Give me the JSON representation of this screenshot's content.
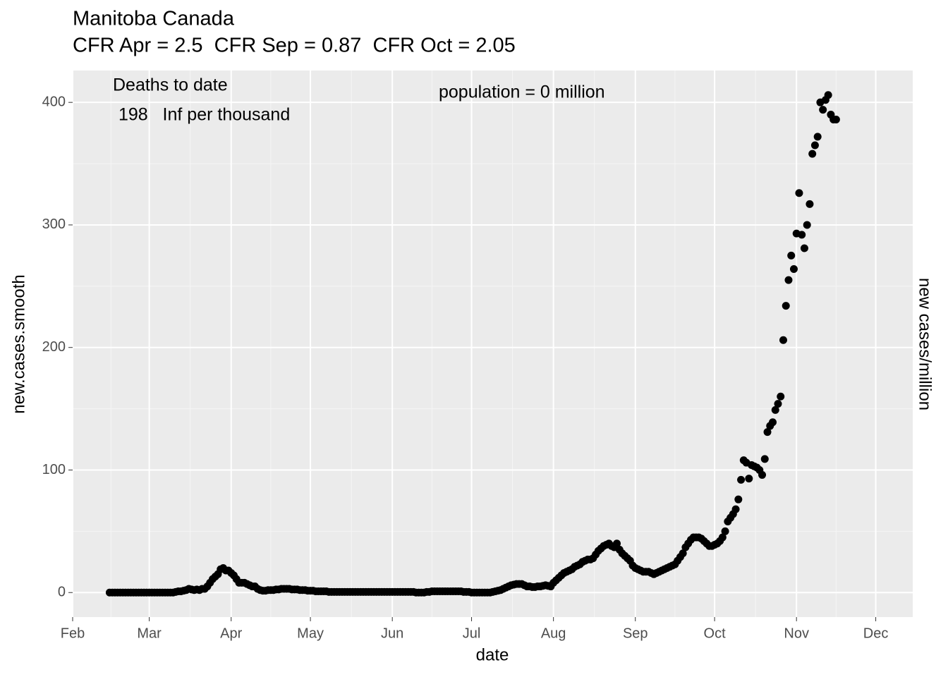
{
  "chart_data": {
    "type": "scatter",
    "title": "Manitoba Canada",
    "subtitle": "CFR Apr = 2.5  CFR Sep = 0.87  CFR Oct = 2.05",
    "annotations": [
      "Deaths to date",
      "198   Inf per thousand",
      "population = 0 million"
    ],
    "x_label": "date",
    "y_label": "new.cases.smooth",
    "y2_label": "new cases/million",
    "color": "#000000",
    "grid": true,
    "xlim": [
      32,
      350
    ],
    "xticks": [
      {
        "value": 32,
        "label": "Feb"
      },
      {
        "value": 61,
        "label": "Mar"
      },
      {
        "value": 92,
        "label": "Apr"
      },
      {
        "value": 122,
        "label": "May"
      },
      {
        "value": 153,
        "label": "Jun"
      },
      {
        "value": 183,
        "label": "Jul"
      },
      {
        "value": 214,
        "label": "Aug"
      },
      {
        "value": 245,
        "label": "Sep"
      },
      {
        "value": 275,
        "label": "Oct"
      },
      {
        "value": 306,
        "label": "Nov"
      },
      {
        "value": 336,
        "label": "Dec"
      }
    ],
    "ylim": [
      -20,
      426
    ],
    "yticks": [
      0,
      100,
      200,
      300,
      400
    ],
    "x": [
      46,
      47,
      48,
      49,
      50,
      51,
      52,
      53,
      54,
      55,
      56,
      57,
      58,
      59,
      60,
      61,
      62,
      63,
      64,
      65,
      66,
      67,
      68,
      69,
      70,
      71,
      72,
      73,
      74,
      75,
      76,
      77,
      78,
      79,
      80,
      81,
      82,
      83,
      84,
      85,
      86,
      87,
      88,
      89,
      90,
      91,
      92,
      93,
      94,
      95,
      96,
      97,
      98,
      99,
      100,
      101,
      102,
      103,
      104,
      105,
      106,
      107,
      108,
      109,
      110,
      111,
      112,
      113,
      114,
      115,
      116,
      117,
      118,
      119,
      120,
      121,
      122,
      123,
      124,
      125,
      126,
      127,
      128,
      129,
      130,
      131,
      132,
      133,
      134,
      135,
      136,
      137,
      138,
      139,
      140,
      141,
      142,
      143,
      144,
      145,
      146,
      147,
      148,
      149,
      150,
      151,
      152,
      153,
      154,
      155,
      156,
      157,
      158,
      159,
      160,
      161,
      162,
      163,
      164,
      165,
      166,
      167,
      168,
      169,
      170,
      171,
      172,
      173,
      174,
      175,
      176,
      177,
      178,
      179,
      180,
      181,
      182,
      183,
      184,
      185,
      186,
      187,
      188,
      189,
      190,
      191,
      192,
      193,
      194,
      195,
      196,
      197,
      198,
      199,
      200,
      201,
      202,
      203,
      204,
      205,
      206,
      207,
      208,
      209,
      210,
      211,
      212,
      213,
      214,
      215,
      216,
      217,
      218,
      219,
      220,
      221,
      222,
      223,
      224,
      225,
      226,
      227,
      228,
      229,
      230,
      231,
      232,
      233,
      234,
      235,
      236,
      237,
      238,
      239,
      240,
      241,
      242,
      243,
      244,
      245,
      246,
      247,
      248,
      249,
      250,
      251,
      252,
      253,
      254,
      255,
      256,
      257,
      258,
      259,
      260,
      261,
      262,
      263,
      264,
      265,
      266,
      267,
      268,
      269,
      270,
      271,
      272,
      273,
      274,
      275,
      276,
      277,
      278,
      279,
      280,
      281,
      282,
      283,
      284,
      285,
      286,
      287,
      288,
      289,
      290,
      291,
      292,
      293,
      294,
      295,
      296,
      297,
      298,
      299,
      300,
      301,
      302,
      303,
      304,
      305,
      306,
      307,
      308,
      309,
      310,
      311,
      312,
      313,
      314,
      315,
      316,
      317,
      318,
      319,
      320,
      321
    ],
    "values": [
      0,
      0,
      0,
      0,
      0,
      0,
      0,
      0,
      0,
      0,
      0,
      0,
      0,
      0,
      0,
      0,
      0,
      0,
      0,
      0,
      0,
      0,
      0,
      0,
      0,
      0.5,
      1,
      1,
      1.5,
      2,
      3,
      2.5,
      2,
      2.5,
      2,
      3,
      3,
      5,
      8,
      11,
      13,
      15,
      19,
      20,
      18,
      18,
      16,
      14,
      11,
      8,
      8,
      8,
      7,
      6,
      5,
      5,
      3,
      2,
      1.5,
      1.5,
      2,
      2,
      2,
      2.5,
      2.5,
      3,
      3,
      3,
      3,
      2.5,
      2.5,
      2.5,
      2,
      2,
      2,
      1.5,
      1.5,
      1.5,
      1,
      1,
      1,
      1,
      1,
      0.5,
      0.5,
      0.5,
      0.5,
      0.5,
      0.5,
      0.5,
      0.5,
      0.5,
      0.5,
      0.5,
      0.5,
      0.5,
      0.5,
      0.5,
      0.5,
      0.5,
      0.5,
      0.5,
      0.5,
      0.5,
      0.5,
      0.5,
      0.5,
      0.5,
      0.5,
      0.5,
      0.5,
      0.5,
      0.5,
      0.5,
      0.5,
      0.5,
      0,
      0,
      0,
      0,
      0.5,
      0.5,
      1,
      1,
      1,
      1,
      1,
      1,
      1,
      1,
      1,
      1,
      1,
      1,
      0.5,
      0.5,
      0.5,
      0,
      0,
      0,
      0,
      0,
      0,
      0,
      0,
      0.5,
      1,
      1.5,
      2,
      3,
      4,
      5,
      6,
      6.5,
      7,
      7,
      7,
      6,
      5,
      5,
      4.5,
      4.5,
      5,
      5,
      5.5,
      6,
      5.5,
      5,
      8,
      10,
      12,
      14,
      16,
      17,
      18,
      19,
      21,
      22,
      23,
      25,
      26,
      27,
      27,
      28,
      31,
      34,
      36,
      38,
      39,
      40,
      38,
      37,
      40,
      35,
      32,
      30,
      28,
      26,
      22,
      20,
      19,
      18,
      17,
      17,
      17,
      16,
      15,
      16,
      17,
      18,
      19,
      20,
      21,
      22,
      23,
      26,
      29,
      32,
      37,
      40,
      43,
      45,
      45,
      45,
      44,
      42,
      40,
      38,
      38,
      39,
      40,
      42,
      45,
      50,
      58,
      61,
      64,
      68,
      76,
      92,
      108,
      106,
      93,
      104,
      103,
      102,
      100,
      96,
      109,
      131,
      136,
      139,
      149,
      154,
      160,
      206,
      234,
      255,
      275,
      264,
      293,
      326,
      292,
      281,
      300,
      317,
      358,
      365,
      372,
      400,
      394,
      402,
      406,
      390,
      386,
      386
    ]
  }
}
